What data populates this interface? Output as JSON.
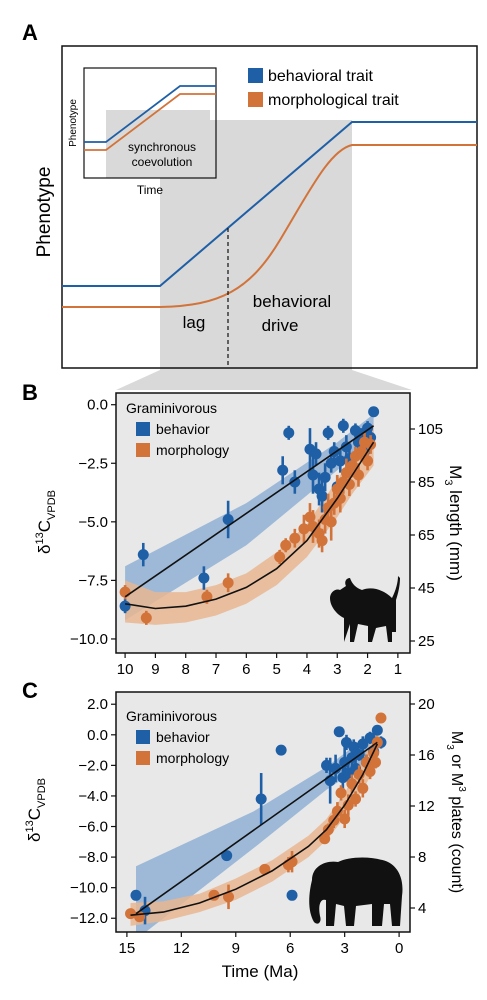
{
  "colors": {
    "behavior": "#1f5fa6",
    "morphology": "#d2733a",
    "behavior_band": "#8fb0d3",
    "morphology_band": "#e8b692",
    "panel_bg": "#e8e8e8",
    "shade": "#d9d9d9",
    "fit_line": "#111111"
  },
  "panelA": {
    "letter": "A",
    "ylabel": "Phenotype",
    "legend": [
      "behavioral trait",
      "morphological trait"
    ],
    "inset": {
      "ylabel": "Phenotype",
      "xlabel": "Time",
      "text_lines": [
        "synchronous",
        "coevolution"
      ]
    },
    "labels": {
      "lag": "lag",
      "drive_lines": [
        "behavioral",
        "drive"
      ]
    }
  },
  "chart_data": [
    {
      "id": "B",
      "type": "scatter",
      "panel_letter": "B",
      "legend_title": "Graminivorous",
      "legend": [
        "behavior",
        "morphology"
      ],
      "xlabel": "",
      "ylabel_main": "δ",
      "ylabel_sup": "13",
      "ylabel_rest": "C",
      "ylabel_sub": "VPDB",
      "y2label_lines": [
        "M",
        "length (mm)"
      ],
      "y2label_sub": "3",
      "x_ticks": [
        "10",
        "9",
        "8",
        "7",
        "6",
        "5",
        "4",
        "3",
        "2",
        "1"
      ],
      "y_ticks": [
        "0.0",
        "−2.5",
        "−5.0",
        "−7.5",
        "−10.0"
      ],
      "y2_ticks": [
        "105",
        "85",
        "65",
        "45",
        "25"
      ],
      "xlim": [
        10.3,
        0.6
      ],
      "ylim": [
        -10.6,
        0.5
      ],
      "y_tick_values": [
        0,
        -2.5,
        -5,
        -7.5,
        -10
      ],
      "x_tick_values": [
        10,
        9,
        8,
        7,
        6,
        5,
        4,
        3,
        2,
        1
      ],
      "animal": "warthog",
      "series": [
        {
          "name": "behavior",
          "points": [
            {
              "x": 10,
              "y": -8.6,
              "e": 0.3
            },
            {
              "x": 9.4,
              "y": -6.4,
              "e": 0.5
            },
            {
              "x": 7.4,
              "y": -7.4,
              "e": 0.5
            },
            {
              "x": 6.6,
              "y": -4.9,
              "e": 0.8
            },
            {
              "x": 4.8,
              "y": -2.8,
              "e": 0.6
            },
            {
              "x": 4.6,
              "y": -1.2,
              "e": 0.3
            },
            {
              "x": 4.4,
              "y": -3.3,
              "e": 0.5
            },
            {
              "x": 3.9,
              "y": -1.9,
              "e": 0.9
            },
            {
              "x": 3.8,
              "y": -3.0,
              "e": 0.8
            },
            {
              "x": 3.7,
              "y": -2.1,
              "e": 0.5
            },
            {
              "x": 3.6,
              "y": -3.6,
              "e": 0.7
            },
            {
              "x": 3.5,
              "y": -3.9,
              "e": 0.7
            },
            {
              "x": 3.4,
              "y": -3.1,
              "e": 0.6
            },
            {
              "x": 3.3,
              "y": -1.2,
              "e": 0.3
            },
            {
              "x": 3.2,
              "y": -2.5,
              "e": 0.4
            },
            {
              "x": 3.1,
              "y": -2.0,
              "e": 0.4
            },
            {
              "x": 3.0,
              "y": -3.5,
              "e": 0.5
            },
            {
              "x": 2.9,
              "y": -2.4,
              "e": 0.5
            },
            {
              "x": 2.8,
              "y": -0.9,
              "e": 0.3
            },
            {
              "x": 2.7,
              "y": -1.8,
              "e": 0.5
            },
            {
              "x": 2.6,
              "y": -2.3,
              "e": 0.4
            },
            {
              "x": 2.4,
              "y": -1.1,
              "e": 0.3
            },
            {
              "x": 2.3,
              "y": -1.6,
              "e": 0.4
            },
            {
              "x": 2.2,
              "y": -1.3,
              "e": 0.3
            },
            {
              "x": 2.0,
              "y": -1.0,
              "e": 0.3
            },
            {
              "x": 1.9,
              "y": -1.4,
              "e": 0.3
            },
            {
              "x": 1.8,
              "y": -0.3,
              "e": 0.2
            },
            {
              "x": 2.1,
              "y": -2.0,
              "e": 0.4
            }
          ],
          "fit": [
            [
              10,
              -8.2
            ],
            [
              1.8,
              -0.9
            ]
          ],
          "band_lo": [
            [
              10,
              -9.2
            ],
            [
              6,
              -6.0
            ],
            [
              3,
              -2.8
            ],
            [
              1.8,
              -1.5
            ]
          ],
          "band_hi": [
            [
              10,
              -6.9
            ],
            [
              6,
              -4.2
            ],
            [
              3,
              -1.6
            ],
            [
              1.8,
              -0.4
            ]
          ]
        },
        {
          "name": "morphology",
          "points": [
            {
              "x": 10,
              "y": -8.0,
              "e": 0.3
            },
            {
              "x": 9.3,
              "y": -9.1,
              "e": 0.3
            },
            {
              "x": 7.3,
              "y": -8.2,
              "e": 0.3
            },
            {
              "x": 6.6,
              "y": -7.6,
              "e": 0.4
            },
            {
              "x": 4.9,
              "y": -6.5,
              "e": 0.3
            },
            {
              "x": 4.7,
              "y": -6.0,
              "e": 0.3
            },
            {
              "x": 4.4,
              "y": -5.7,
              "e": 0.4
            },
            {
              "x": 4.1,
              "y": -5.3,
              "e": 0.6
            },
            {
              "x": 3.9,
              "y": -4.8,
              "e": 0.6
            },
            {
              "x": 3.8,
              "y": -5.2,
              "e": 0.7
            },
            {
              "x": 3.6,
              "y": -5.5,
              "e": 0.6
            },
            {
              "x": 3.5,
              "y": -5.8,
              "e": 0.5
            },
            {
              "x": 3.4,
              "y": -4.9,
              "e": 0.6
            },
            {
              "x": 3.3,
              "y": -4.4,
              "e": 0.6
            },
            {
              "x": 3.2,
              "y": -5.0,
              "e": 0.8
            },
            {
              "x": 3.1,
              "y": -4.2,
              "e": 0.5
            },
            {
              "x": 3.0,
              "y": -3.6,
              "e": 0.6
            },
            {
              "x": 2.9,
              "y": -4.0,
              "e": 0.6
            },
            {
              "x": 2.8,
              "y": -3.3,
              "e": 0.5
            },
            {
              "x": 2.7,
              "y": -2.9,
              "e": 0.6
            },
            {
              "x": 2.6,
              "y": -3.4,
              "e": 0.5
            },
            {
              "x": 2.5,
              "y": -2.6,
              "e": 0.5
            },
            {
              "x": 2.4,
              "y": -2.2,
              "e": 0.4
            },
            {
              "x": 2.3,
              "y": -3.0,
              "e": 0.5
            },
            {
              "x": 2.2,
              "y": -2.0,
              "e": 0.4
            },
            {
              "x": 2.1,
              "y": -1.6,
              "e": 0.4
            },
            {
              "x": 2.0,
              "y": -2.4,
              "e": 0.4
            },
            {
              "x": 1.9,
              "y": -1.7,
              "e": 0.4
            }
          ],
          "fit": [
            [
              10,
              -8.5
            ],
            [
              9,
              -8.7
            ],
            [
              8,
              -8.6
            ],
            [
              7,
              -8.3
            ],
            [
              6,
              -7.8
            ],
            [
              5,
              -7.0
            ],
            [
              4,
              -5.8
            ],
            [
              3,
              -4.0
            ],
            [
              2.5,
              -3.0
            ],
            [
              1.8,
              -1.6
            ]
          ],
          "band_lo": [
            [
              10,
              -9.3
            ],
            [
              9,
              -9.4
            ],
            [
              8,
              -9.3
            ],
            [
              7,
              -9.0
            ],
            [
              6,
              -8.5
            ],
            [
              5,
              -7.7
            ],
            [
              4,
              -6.5
            ],
            [
              3,
              -4.8
            ],
            [
              2.5,
              -3.8
            ],
            [
              1.8,
              -2.6
            ]
          ],
          "band_hi": [
            [
              10,
              -7.5
            ],
            [
              9,
              -8.0
            ],
            [
              8,
              -8.0
            ],
            [
              7,
              -7.7
            ],
            [
              6,
              -7.2
            ],
            [
              5,
              -6.3
            ],
            [
              4,
              -5.1
            ],
            [
              3,
              -3.2
            ],
            [
              2.5,
              -2.2
            ],
            [
              1.8,
              -0.8
            ]
          ]
        }
      ]
    },
    {
      "id": "C",
      "type": "scatter",
      "panel_letter": "C",
      "legend_title": "Graminivorous",
      "legend": [
        "behavior",
        "morphology"
      ],
      "xlabel": "Time (Ma)",
      "ylabel_main": "δ",
      "ylabel_sup": "13",
      "ylabel_rest": "C",
      "ylabel_sub": "VPDB",
      "y2label_lines": [
        "M",
        "or M",
        "plates (count)"
      ],
      "y2label_sub": "3",
      "y2label_sup": "3",
      "x_ticks": [
        "15",
        "12",
        "9",
        "6",
        "3",
        "0"
      ],
      "y_ticks": [
        "2.0",
        "0.0",
        "−2.0",
        "−4.0",
        "−6.0",
        "−8.0",
        "−10.0",
        "−12.0"
      ],
      "y2_ticks": [
        "20",
        "16",
        "12",
        "8",
        "4"
      ],
      "xlim": [
        15.6,
        -0.6
      ],
      "ylim": [
        -12.9,
        2.8
      ],
      "y_tick_values": [
        2,
        0,
        -2,
        -4,
        -6,
        -8,
        -10,
        -12
      ],
      "x_tick_values": [
        15,
        12,
        9,
        6,
        3,
        0
      ],
      "animal": "elephant",
      "series": [
        {
          "name": "behavior",
          "points": [
            {
              "x": 14.5,
              "y": -10.5,
              "e": 0.3
            },
            {
              "x": 14.0,
              "y": -11.5,
              "e": 0.9
            },
            {
              "x": 9.5,
              "y": -7.9,
              "e": 0.3
            },
            {
              "x": 7.6,
              "y": -4.2,
              "e": 1.7
            },
            {
              "x": 6.5,
              "y": -1.0,
              "e": 0.2
            },
            {
              "x": 5.9,
              "y": -10.5,
              "e": 0.2
            },
            {
              "x": 4.0,
              "y": -2.0,
              "e": 0.5
            },
            {
              "x": 3.8,
              "y": -3.0,
              "e": 1.5
            },
            {
              "x": 3.5,
              "y": -2.2,
              "e": 0.9
            },
            {
              "x": 3.3,
              "y": 0.2,
              "e": 0.3
            },
            {
              "x": 3.1,
              "y": -2.8,
              "e": 0.8
            },
            {
              "x": 3.0,
              "y": -1.8,
              "e": 1.2
            },
            {
              "x": 2.9,
              "y": -0.5,
              "e": 0.5
            },
            {
              "x": 2.8,
              "y": -2.5,
              "e": 0.7
            },
            {
              "x": 2.6,
              "y": -1.5,
              "e": 0.6
            },
            {
              "x": 2.5,
              "y": -0.8,
              "e": 0.5
            },
            {
              "x": 2.4,
              "y": -2.2,
              "e": 0.6
            },
            {
              "x": 2.2,
              "y": -1.3,
              "e": 0.4
            },
            {
              "x": 2.0,
              "y": -0.6,
              "e": 0.5
            },
            {
              "x": 1.8,
              "y": -1.8,
              "e": 0.5
            },
            {
              "x": 1.6,
              "y": -0.2,
              "e": 0.4
            },
            {
              "x": 1.4,
              "y": -1.1,
              "e": 0.5
            },
            {
              "x": 1.2,
              "y": 0.3,
              "e": 0.3
            },
            {
              "x": 1.0,
              "y": -0.5,
              "e": 0.4
            }
          ],
          "fit": [
            [
              14.5,
              -11.7
            ],
            [
              1.2,
              -0.5
            ]
          ],
          "band_lo": [
            [
              14.5,
              -13.4
            ],
            [
              8,
              -7.4
            ],
            [
              4,
              -3.6
            ],
            [
              1.2,
              -1.4
            ]
          ],
          "band_hi": [
            [
              14.5,
              -8.6
            ],
            [
              8,
              -5.0
            ],
            [
              4,
              -2.1
            ],
            [
              1.2,
              0.4
            ]
          ]
        },
        {
          "name": "morphology",
          "points": [
            {
              "x": 14.8,
              "y": -11.7,
              "e": 0.3
            },
            {
              "x": 14.3,
              "y": -11.9,
              "e": 0.3
            },
            {
              "x": 10.2,
              "y": -10.5,
              "e": 0.3
            },
            {
              "x": 9.4,
              "y": -10.6,
              "e": 0.8
            },
            {
              "x": 7.4,
              "y": -8.8,
              "e": 0.3
            },
            {
              "x": 6.1,
              "y": -8.5,
              "e": 0.5
            },
            {
              "x": 5.9,
              "y": -8.3,
              "e": 0.7
            },
            {
              "x": 4.1,
              "y": -6.8,
              "e": 0.3
            },
            {
              "x": 3.9,
              "y": -6.2,
              "e": 0.4
            },
            {
              "x": 3.6,
              "y": -5.6,
              "e": 0.5
            },
            {
              "x": 3.4,
              "y": -5.0,
              "e": 0.6
            },
            {
              "x": 3.2,
              "y": -3.8,
              "e": 0.5
            },
            {
              "x": 3.0,
              "y": -5.5,
              "e": 0.6
            },
            {
              "x": 2.8,
              "y": -4.6,
              "e": 0.7
            },
            {
              "x": 2.6,
              "y": -3.2,
              "e": 0.6
            },
            {
              "x": 2.4,
              "y": -4.2,
              "e": 0.5
            },
            {
              "x": 2.2,
              "y": -2.6,
              "e": 0.6
            },
            {
              "x": 2.0,
              "y": -3.5,
              "e": 0.6
            },
            {
              "x": 1.8,
              "y": -1.8,
              "e": 0.5
            },
            {
              "x": 1.6,
              "y": -2.4,
              "e": 0.5
            },
            {
              "x": 1.4,
              "y": -1.2,
              "e": 0.4
            },
            {
              "x": 1.2,
              "y": -0.5,
              "e": 0.4
            },
            {
              "x": 1.0,
              "y": 1.1,
              "e": 0.3
            },
            {
              "x": 1.3,
              "y": -1.8,
              "e": 0.4
            }
          ],
          "fit": [
            [
              14.8,
              -11.8
            ],
            [
              13,
              -11.6
            ],
            [
              11,
              -11.0
            ],
            [
              9,
              -10.1
            ],
            [
              7,
              -8.9
            ],
            [
              5,
              -7.3
            ],
            [
              4,
              -6.2
            ],
            [
              3,
              -4.6
            ],
            [
              2,
              -2.6
            ],
            [
              1.2,
              -0.6
            ]
          ],
          "band_lo": [
            [
              14.8,
              -12.5
            ],
            [
              13,
              -12.2
            ],
            [
              11,
              -11.6
            ],
            [
              9,
              -10.8
            ],
            [
              7,
              -9.6
            ],
            [
              5,
              -8.0
            ],
            [
              4,
              -6.9
            ],
            [
              3,
              -5.4
            ],
            [
              2,
              -3.6
            ],
            [
              1.2,
              -1.9
            ]
          ],
          "band_hi": [
            [
              14.8,
              -11.0
            ],
            [
              13,
              -10.9
            ],
            [
              11,
              -10.4
            ],
            [
              9,
              -9.4
            ],
            [
              7,
              -8.2
            ],
            [
              5,
              -6.6
            ],
            [
              4,
              -5.5
            ],
            [
              3,
              -3.8
            ],
            [
              2,
              -1.7
            ],
            [
              1.2,
              0.6
            ]
          ]
        }
      ]
    }
  ]
}
